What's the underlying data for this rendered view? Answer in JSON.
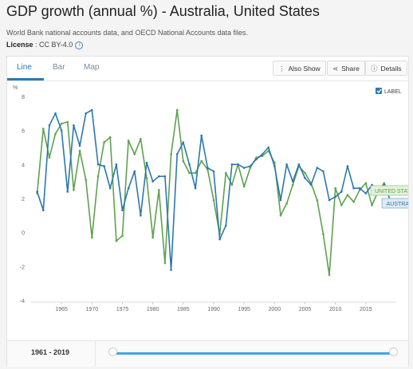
{
  "header": {
    "title": "GDP growth (annual %) - Australia, United States",
    "subtitle": "World Bank national accounts data, and OECD National Accounts data files.",
    "license_label": "License",
    "license_value": " : CC BY-4.0"
  },
  "tabs": [
    {
      "label": "Line",
      "active": true
    },
    {
      "label": "Bar",
      "active": false
    },
    {
      "label": "Map",
      "active": false
    }
  ],
  "actions": {
    "also_show": "Also Show",
    "share": "Share",
    "details": "Details"
  },
  "legend": {
    "checkbox_label": "LABEL",
    "checked": true
  },
  "footer": {
    "range_label": "1961 - 2019"
  },
  "colors": {
    "australia": "#2b77b0",
    "united_states": "#5fa04e",
    "accent": "#2a7ab8",
    "slider": "#3fa6e0"
  },
  "chart_data": {
    "type": "line",
    "ylabel": "%",
    "ylim": [
      -4,
      8
    ],
    "yticks": [
      -4,
      -2,
      0,
      2,
      4,
      6,
      8
    ],
    "xlim": [
      1960,
      2020
    ],
    "xticks": [
      1965,
      1970,
      1975,
      1980,
      1985,
      1990,
      1995,
      2000,
      2005,
      2010,
      2015
    ],
    "grid": false,
    "series": [
      {
        "name": "AUSTRALIA",
        "color": "#2b77b0",
        "x": [
          1961,
          1962,
          1963,
          1964,
          1965,
          1966,
          1967,
          1968,
          1969,
          1970,
          1971,
          1972,
          1973,
          1974,
          1975,
          1976,
          1977,
          1978,
          1979,
          1980,
          1981,
          1982,
          1983,
          1984,
          1985,
          1986,
          1987,
          1988,
          1989,
          1990,
          1991,
          1992,
          1993,
          1994,
          1995,
          1996,
          1997,
          1998,
          1999,
          2000,
          2001,
          2002,
          2003,
          2004,
          2005,
          2006,
          2007,
          2008,
          2009,
          2010,
          2011,
          2012,
          2013,
          2014,
          2015,
          2016,
          2017,
          2018,
          2019
        ],
        "values": [
          2.4,
          1.3,
          6.3,
          7.0,
          6.0,
          2.4,
          6.3,
          5.1,
          7.0,
          7.2,
          4.0,
          3.9,
          2.6,
          4.0,
          1.3,
          2.6,
          3.6,
          1.0,
          4.1,
          3.0,
          3.3,
          3.3,
          -2.2,
          4.6,
          5.3,
          4.0,
          2.6,
          5.7,
          3.8,
          3.6,
          -0.4,
          0.4,
          4.0,
          4.0,
          3.8,
          3.9,
          4.3,
          4.6,
          5.0,
          3.9,
          1.9,
          4.0,
          3.0,
          4.0,
          3.2,
          2.8,
          3.8,
          3.6,
          1.9,
          2.1,
          2.4,
          3.9,
          2.6,
          2.6,
          2.3,
          2.8,
          2.5,
          2.8,
          1.9
        ]
      },
      {
        "name": "UNITED STATES",
        "color": "#5fa04e",
        "x": [
          1961,
          1962,
          1963,
          1964,
          1965,
          1966,
          1967,
          1968,
          1969,
          1970,
          1971,
          1972,
          1973,
          1974,
          1975,
          1976,
          1977,
          1978,
          1979,
          1980,
          1981,
          1982,
          1983,
          1984,
          1985,
          1986,
          1987,
          1988,
          1989,
          1990,
          1991,
          1992,
          1993,
          1994,
          1995,
          1996,
          1997,
          1998,
          1999,
          2000,
          2001,
          2002,
          2003,
          2004,
          2005,
          2006,
          2007,
          2008,
          2009,
          2010,
          2011,
          2012,
          2013,
          2014,
          2015,
          2016,
          2017,
          2018,
          2019
        ],
        "values": [
          2.3,
          6.1,
          4.4,
          5.8,
          6.4,
          6.5,
          2.5,
          4.8,
          3.1,
          -0.3,
          3.3,
          5.3,
          5.6,
          -0.5,
          -0.2,
          5.4,
          4.6,
          5.5,
          3.2,
          -0.3,
          2.5,
          -1.8,
          4.6,
          7.2,
          4.2,
          3.5,
          3.5,
          4.2,
          3.7,
          1.9,
          -0.1,
          3.5,
          2.8,
          4.0,
          2.7,
          3.8,
          4.4,
          4.5,
          4.8,
          4.1,
          1.0,
          1.7,
          2.8,
          3.9,
          3.5,
          2.9,
          1.9,
          -0.1,
          -2.5,
          2.6,
          1.6,
          2.2,
          1.8,
          2.5,
          2.9,
          1.6,
          2.4,
          2.9,
          2.3
        ]
      }
    ]
  }
}
